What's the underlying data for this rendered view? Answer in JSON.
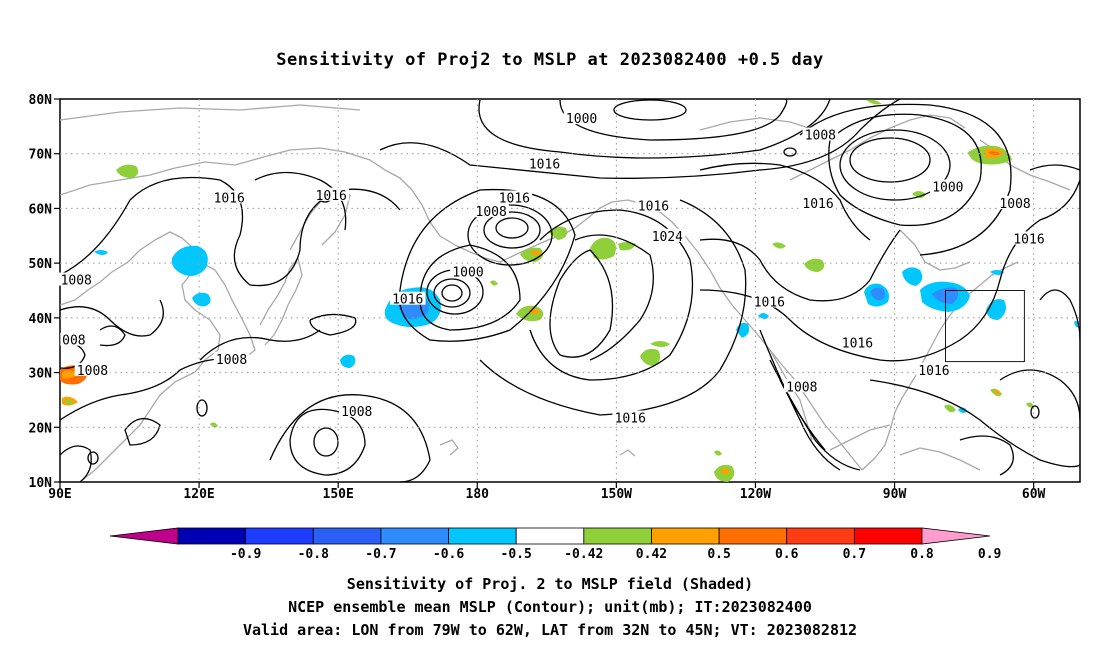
{
  "title": "Sensitivity of Proj2 to MSLP at 2023082400 +0.5 day",
  "axes": {
    "lat_labels": [
      "80N",
      "70N",
      "60N",
      "50N",
      "40N",
      "30N",
      "20N",
      "10N"
    ],
    "lon_labels": [
      "90E",
      "120E",
      "150E",
      "180",
      "150W",
      "120W",
      "90W",
      "60W"
    ]
  },
  "contour_labels": [
    {
      "text": "1000",
      "lon": -157.5,
      "lat": 76.5
    },
    {
      "text": "1008",
      "lon": -106,
      "lat": 73.5
    },
    {
      "text": "1016",
      "lon": -165.5,
      "lat": 68.2
    },
    {
      "text": "1016",
      "lon": 148.5,
      "lat": 62.5
    },
    {
      "text": "1016",
      "lon": 126.5,
      "lat": 62
    },
    {
      "text": "1016",
      "lon": -172,
      "lat": 62
    },
    {
      "text": "1008",
      "lon": -177,
      "lat": 59.5
    },
    {
      "text": "1016",
      "lon": -142,
      "lat": 60.5
    },
    {
      "text": "1016",
      "lon": -106.5,
      "lat": 61
    },
    {
      "text": "1000",
      "lon": -78.5,
      "lat": 64
    },
    {
      "text": "1008",
      "lon": -64,
      "lat": 61
    },
    {
      "text": "1024",
      "lon": -139,
      "lat": 55
    },
    {
      "text": "1000",
      "lon": -182,
      "lat": 48.5
    },
    {
      "text": "1016",
      "lon": -61,
      "lat": 54.5
    },
    {
      "text": "1008",
      "lon": 93.5,
      "lat": 47
    },
    {
      "text": "1016",
      "lon": 165,
      "lat": 43.5
    },
    {
      "text": "1016",
      "lon": -117,
      "lat": 43
    },
    {
      "text": "008",
      "lon": 93,
      "lat": 36
    },
    {
      "text": "1016",
      "lon": -98,
      "lat": 35.5
    },
    {
      "text": "1008",
      "lon": 97,
      "lat": 30.5
    },
    {
      "text": "1008",
      "lon": 127,
      "lat": 32.5
    },
    {
      "text": "1016",
      "lon": -81.5,
      "lat": 30.5
    },
    {
      "text": "1008",
      "lon": -110,
      "lat": 27.5
    },
    {
      "text": "1016",
      "lon": -147,
      "lat": 21.8
    },
    {
      "text": "1008",
      "lon": 154,
      "lat": 23
    }
  ],
  "colorbar": {
    "labels": [
      "-0.9",
      "-0.8",
      "-0.7",
      "-0.6",
      "-0.5",
      "-0.42",
      "0.42",
      "0.5",
      "0.6",
      "0.7",
      "0.8",
      "0.9"
    ],
    "colors": [
      "#0000b4",
      "#1e3cff",
      "#2c5ff5",
      "#2e8cff",
      "#00c8ff",
      "#ffffff",
      "#8fcf3a",
      "#ffa000",
      "#ff6e00",
      "#ff3c14",
      "#ff0000"
    ],
    "low_end_color": "#c0008a",
    "high_end_color": "#ff9ccf"
  },
  "valid_area_box": {
    "lon_min": -79,
    "lon_max": -62,
    "lat_min": 32,
    "lat_max": 45
  },
  "captions": [
    "Sensitivity of Proj. 2 to MSLP field (Shaded)",
    "NCEP ensemble mean MSLP (Contour); unit(mb); IT:2023082400",
    "Valid area: LON from 79W to 62W, LAT from 32N to 45N; VT: 2023082812"
  ]
}
